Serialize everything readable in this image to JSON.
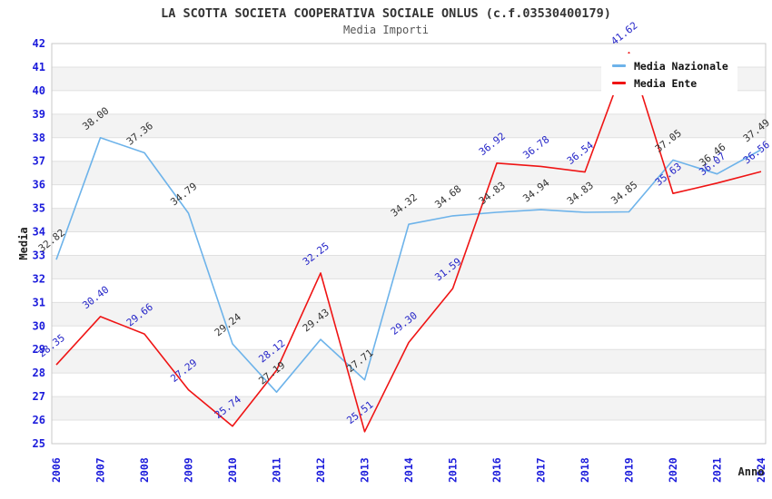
{
  "page": {
    "title": "LA SCOTTA SOCIETA COOPERATIVA SOCIALE ONLUS (c.f.03530400179)",
    "subtitle": "Media Importi"
  },
  "legend": {
    "items": [
      {
        "label": "Media Nazionale",
        "color": "#6db3ea"
      },
      {
        "label": "Media Ente",
        "color": "#ef1414"
      }
    ]
  },
  "axes": {
    "y_title": "Media",
    "x_title": "Anno",
    "y_ticks": [
      25,
      26,
      27,
      28,
      29,
      30,
      31,
      32,
      33,
      34,
      35,
      36,
      37,
      38,
      39,
      40,
      41,
      42
    ]
  },
  "colors": {
    "band_gray": "#f3f3f3",
    "band_white": "#ffffff",
    "gridline": "#e0e0e0",
    "plot_border": "#c9c9c9",
    "tick_label": "#1b1bdb",
    "axis_title": "#222222"
  },
  "chart_data": {
    "type": "line",
    "title": "LA SCOTTA SOCIETA COOPERATIVA SOCIALE ONLUS (c.f.03530400179)",
    "subtitle": "Media Importi",
    "xlabel": "Anno",
    "ylabel": "Media",
    "ylim": [
      25,
      42
    ],
    "grid": "horizontal-bands",
    "legend_position": "top-right",
    "categories": [
      "2006",
      "2007",
      "2008",
      "2009",
      "2010",
      "2011",
      "2012",
      "2013",
      "2014",
      "2015",
      "2016",
      "2017",
      "2018",
      "2019",
      "2020",
      "2021",
      "2024"
    ],
    "series": [
      {
        "name": "Media Nazionale",
        "color": "#6db3ea",
        "label_color": "#333333",
        "values": [
          32.82,
          38.0,
          37.36,
          34.79,
          29.24,
          27.19,
          29.43,
          27.71,
          34.32,
          34.68,
          34.83,
          34.94,
          34.83,
          34.85,
          37.05,
          36.46,
          37.49
        ]
      },
      {
        "name": "Media Ente",
        "color": "#ef1414",
        "label_color": "#2626c8",
        "values": [
          28.35,
          30.4,
          29.66,
          27.29,
          25.74,
          28.12,
          32.25,
          25.51,
          29.3,
          31.59,
          36.92,
          36.78,
          36.54,
          41.62,
          35.63,
          36.07,
          36.56
        ]
      }
    ]
  }
}
